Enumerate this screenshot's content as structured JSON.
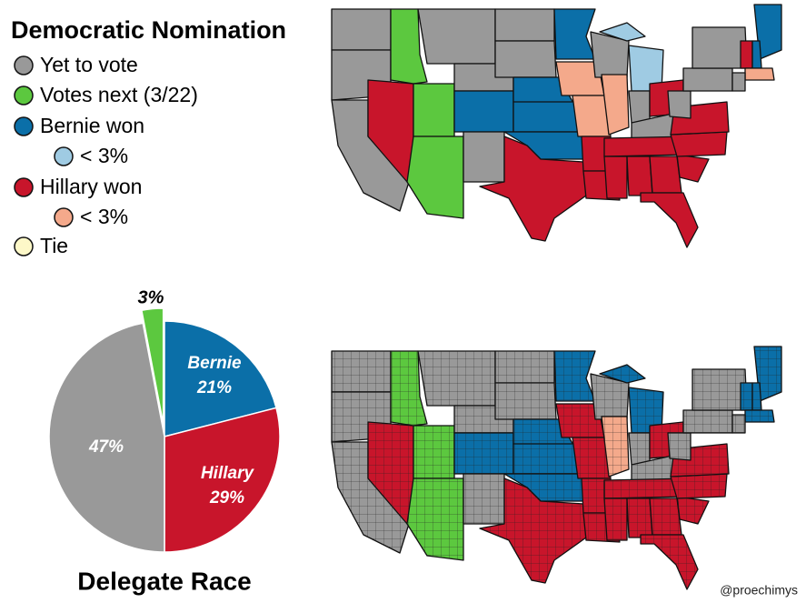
{
  "legend": {
    "title": "Democratic Nomination",
    "items": [
      {
        "label": "Yet to vote",
        "color": "#999999"
      },
      {
        "label": "Votes next (3/22)",
        "color": "#5cc83f"
      },
      {
        "label": "Bernie won",
        "color": "#0b6fa8"
      },
      {
        "label": "< 3%",
        "color": "#9fcbe3"
      },
      {
        "label": "Hillary won",
        "color": "#c8152b"
      },
      {
        "label": "< 3%",
        "color": "#f4a98b"
      },
      {
        "label": "Tie",
        "color": "#fdf8c8"
      }
    ]
  },
  "credit": "@proechimys",
  "chart_data": {
    "type": "pie",
    "title": "Delegate Race",
    "categories": [
      "Bernie",
      "Hillary",
      null,
      null
    ],
    "values": [
      21,
      29,
      47,
      3
    ],
    "value_labels": [
      "21%",
      "29%",
      "47%",
      "3%"
    ],
    "colors": [
      "#0b6fa8",
      "#c8152b",
      "#999999",
      "#5cc83f"
    ]
  }
}
